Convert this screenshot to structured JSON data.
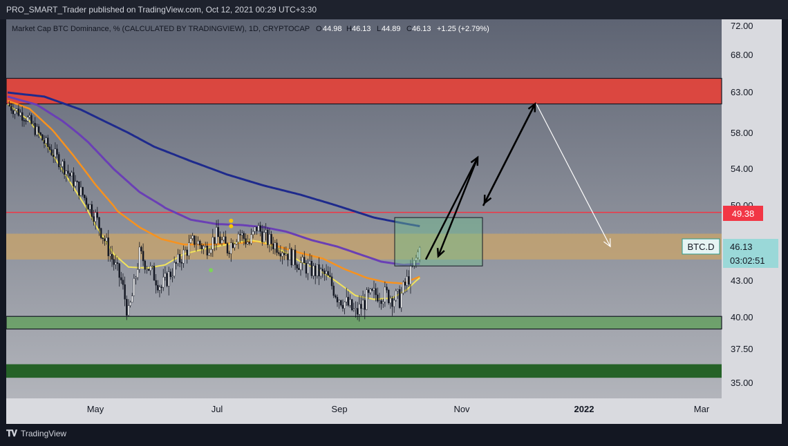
{
  "header": {
    "published_line": "PRO_SMART_Trader published on TradingView.com, Oct 12, 2021 00:29 UTC+3:30"
  },
  "legend": {
    "symbol": "Market Cap BTC Dominance, % (CALCULATED BY TRADINGVIEW), 1D, CRYPTOCAP",
    "o_label": "O",
    "o_value": "44.98",
    "h_label": "H",
    "h_value": "46.13",
    "l_label": "L",
    "l_value": "44.89",
    "c_label": "C",
    "c_value": "46.13",
    "change": "+1.25 (+2.79%)"
  },
  "price_tags": {
    "level_red": "49.38",
    "ticker": "BTC.D",
    "last_price": "46.13",
    "countdown": "03:02:51"
  },
  "footer": {
    "brand": "TradingView"
  },
  "colors": {
    "background": "#9598a1",
    "resistance_zone": "#e0453c",
    "support_zone": "#6ca068",
    "deep_support": "#1d5e20",
    "mid_zone": "#c9a46a",
    "ema_yellow": "#f2e35a",
    "ema_orange": "#f7921e",
    "ema_purple": "#6a3fb5",
    "ema_navy": "#1e2a8c",
    "red_line": "#f23645"
  },
  "chart_data": {
    "type": "candlestick",
    "title": "Market Cap BTC Dominance, % (CALCULATED BY TRADINGVIEW), 1D, CRYPTOCAP",
    "y_ticks": [
      72.0,
      68.0,
      63.0,
      58.0,
      54.0,
      50.0,
      43.0,
      40.0,
      37.5,
      35.0
    ],
    "x_ticks": [
      "May",
      "Jul",
      "Sep",
      "Nov",
      "2022",
      "Mar"
    ],
    "zones": [
      {
        "name": "resistance",
        "from": 61.6,
        "to": 64.9,
        "color": "#e0453c"
      },
      {
        "name": "mid",
        "from": 45.0,
        "to": 47.4,
        "color": "#c9a46a"
      },
      {
        "name": "support",
        "from": 39.1,
        "to": 40.1,
        "color": "#6ca068"
      },
      {
        "name": "deep-support",
        "from": 35.4,
        "to": 36.4,
        "color": "#1d5e20"
      }
    ],
    "hline": 49.38,
    "close_path": [
      [
        0,
        61.5
      ],
      [
        10,
        60.0
      ],
      [
        20,
        57.0
      ],
      [
        30,
        54.5
      ],
      [
        40,
        51.5
      ],
      [
        48,
        49.0
      ],
      [
        56,
        45.5
      ],
      [
        62,
        43.0
      ],
      [
        66,
        40.2
      ],
      [
        69,
        42.5
      ],
      [
        72,
        45.5
      ],
      [
        78,
        44.0
      ],
      [
        84,
        42.5
      ],
      [
        90,
        44.0
      ],
      [
        96,
        45.5
      ],
      [
        102,
        46.8
      ],
      [
        108,
        46.0
      ],
      [
        114,
        47.2
      ],
      [
        120,
        46.0
      ],
      [
        126,
        47.5
      ],
      [
        132,
        46.5
      ],
      [
        136,
        48.0
      ],
      [
        142,
        46.8
      ],
      [
        150,
        46.0
      ],
      [
        158,
        44.8
      ],
      [
        166,
        44.0
      ],
      [
        174,
        43.5
      ],
      [
        180,
        41.8
      ],
      [
        186,
        41.0
      ],
      [
        190,
        40.3
      ],
      [
        196,
        41.5
      ],
      [
        202,
        42.0
      ],
      [
        208,
        41.8
      ],
      [
        214,
        41.5
      ],
      [
        218,
        43.0
      ],
      [
        222,
        44.5
      ],
      [
        225,
        46.13
      ]
    ],
    "ema_yellow": [
      [
        0,
        61.6
      ],
      [
        12,
        59.5
      ],
      [
        24,
        55.8
      ],
      [
        36,
        52.0
      ],
      [
        48,
        48.2
      ],
      [
        58,
        45.5
      ],
      [
        66,
        44.3
      ],
      [
        76,
        44.2
      ],
      [
        86,
        44.5
      ],
      [
        96,
        45.5
      ],
      [
        108,
        46.0
      ],
      [
        120,
        46.4
      ],
      [
        132,
        46.8
      ],
      [
        140,
        46.6
      ],
      [
        150,
        45.8
      ],
      [
        160,
        44.8
      ],
      [
        170,
        44.0
      ],
      [
        180,
        42.9
      ],
      [
        190,
        41.8
      ],
      [
        200,
        41.5
      ],
      [
        210,
        41.6
      ],
      [
        218,
        42.3
      ],
      [
        225,
        43.3
      ]
    ],
    "ema_orange": [
      [
        0,
        62.0
      ],
      [
        12,
        61.0
      ],
      [
        24,
        58.5
      ],
      [
        36,
        55.5
      ],
      [
        48,
        52.3
      ],
      [
        60,
        49.5
      ],
      [
        72,
        48.0
      ],
      [
        84,
        46.9
      ],
      [
        96,
        46.4
      ],
      [
        110,
        46.4
      ],
      [
        124,
        46.5
      ],
      [
        136,
        46.7
      ],
      [
        148,
        46.2
      ],
      [
        160,
        45.6
      ],
      [
        172,
        45.1
      ],
      [
        184,
        44.1
      ],
      [
        196,
        43.3
      ],
      [
        206,
        42.9
      ],
      [
        216,
        42.8
      ],
      [
        225,
        43.4
      ]
    ],
    "ema_purple": [
      [
        0,
        62.5
      ],
      [
        16,
        61.5
      ],
      [
        30,
        59.5
      ],
      [
        44,
        57.0
      ],
      [
        58,
        54.0
      ],
      [
        72,
        51.5
      ],
      [
        86,
        49.8
      ],
      [
        100,
        48.7
      ],
      [
        114,
        48.3
      ],
      [
        128,
        48.2
      ],
      [
        140,
        48.0
      ],
      [
        152,
        47.6
      ],
      [
        166,
        46.8
      ],
      [
        180,
        46.2
      ],
      [
        192,
        45.5
      ],
      [
        204,
        44.8
      ],
      [
        216,
        44.5
      ],
      [
        225,
        44.6
      ]
    ],
    "ema_navy": [
      [
        0,
        63.0
      ],
      [
        20,
        62.5
      ],
      [
        40,
        60.9
      ],
      [
        60,
        58.7
      ],
      [
        80,
        56.5
      ],
      [
        100,
        54.9
      ],
      [
        120,
        53.4
      ],
      [
        140,
        52.2
      ],
      [
        160,
        51.2
      ],
      [
        180,
        50.0
      ],
      [
        200,
        48.9
      ],
      [
        215,
        48.4
      ],
      [
        225,
        48.1
      ]
    ]
  }
}
